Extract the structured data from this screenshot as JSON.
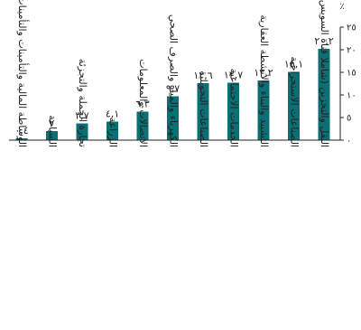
{
  "chart_data": {
    "type": "bar",
    "unit": "٪",
    "ylim": [
      0,
      25
    ],
    "yticks": [
      0,
      5,
      10,
      15,
      20,
      25
    ],
    "ytick_labels": [
      "٠",
      "٥",
      "١٠",
      "١٥",
      "٢٠",
      "٢٥"
    ],
    "categories": [
      "النقل والتخزين (شاملا قناة السويس)",
      "الصناعات الاستخراجية",
      "التشييد والبناء والأنشطة العقارية",
      "الخدمات الاجتماعية",
      "الصناعات التحويلية",
      "الكهرباء والمياه والصرف الصحي",
      "الاتصالات والمعلومات",
      "الزراعة",
      "تجارة الجملة والتجزئة",
      "السياحة",
      "الوساطة المالية والتأمينات والتأمينات الاجتماعية"
    ],
    "values": [
      20.2,
      15.1,
      13.2,
      12.7,
      12.6,
      9.7,
      6.3,
      4.1,
      3.7,
      2.0,
      0.4
    ],
    "value_labels": [
      "٢٠,٢",
      "١٥,١",
      "١٣,٢",
      "١٢,٧",
      "١٢,٦",
      "٩,٧",
      "٦,٣",
      "٤,١",
      "٣,٧",
      "٢",
      "٠,٤"
    ],
    "bar_color": "#0b6f74",
    "grid": false,
    "legend": "none"
  }
}
